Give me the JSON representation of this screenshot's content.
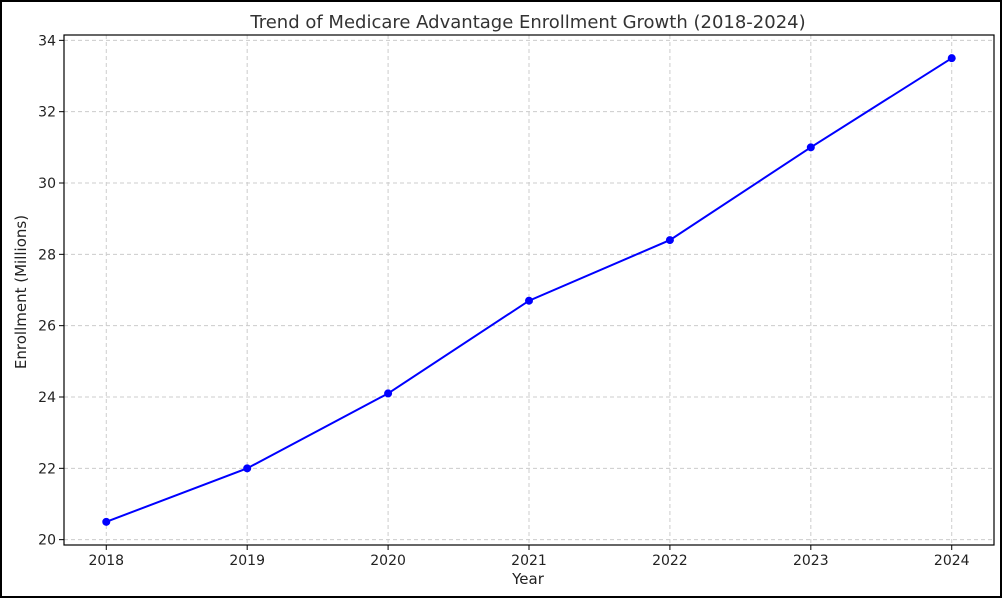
{
  "chart_data": {
    "type": "line",
    "title": "Trend of Medicare Advantage Enrollment Growth (2018-2024)",
    "xlabel": "Year",
    "ylabel": "Enrollment (Millions)",
    "x": [
      2018,
      2019,
      2020,
      2021,
      2022,
      2023,
      2024
    ],
    "series": [
      {
        "values": [
          20.5,
          22.0,
          24.1,
          26.7,
          28.4,
          31.0,
          33.5
        ]
      }
    ],
    "x_ticks": [
      "2018",
      "2019",
      "2020",
      "2021",
      "2022",
      "2023",
      "2024"
    ],
    "y_ticks": [
      "20",
      "22",
      "24",
      "26",
      "28",
      "30",
      "32",
      "34"
    ],
    "xlim": [
      2017.7,
      2024.3
    ],
    "ylim": [
      19.85,
      34.15
    ],
    "grid": true,
    "line_style": "dashed",
    "colors": {
      "series": "#0000ff",
      "grid": "#cccccc",
      "axis": "#000000"
    }
  }
}
